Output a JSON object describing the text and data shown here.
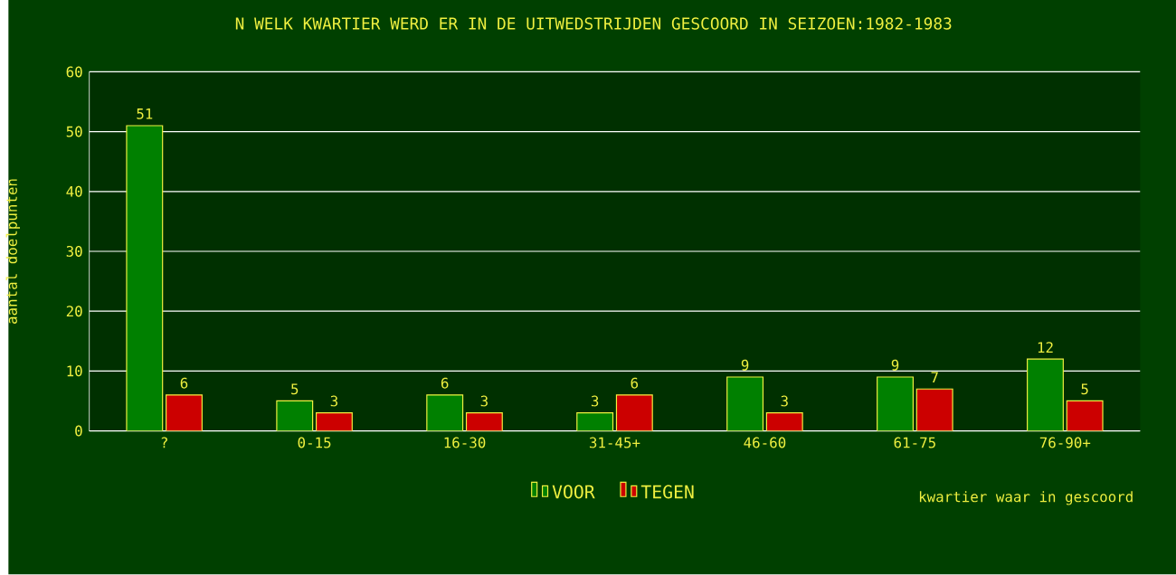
{
  "chart_data": {
    "type": "bar",
    "title": "N WELK KWARTIER WERD ER IN DE UITWEDSTRIJDEN GESCOORD IN SEIZOEN:1982-1983",
    "xlabel": "kwartier waar in gescoord",
    "ylabel": "aantal doelpunten",
    "categories": [
      "?",
      "0-15",
      "16-30",
      "31-45+",
      "46-60",
      "61-75",
      "76-90+"
    ],
    "series": [
      {
        "name": "VOOR",
        "color": "#008000",
        "values": [
          51,
          5,
          6,
          3,
          9,
          9,
          12
        ]
      },
      {
        "name": "TEGEN",
        "color": "#cc0000",
        "values": [
          6,
          3,
          3,
          6,
          3,
          7,
          5
        ]
      }
    ],
    "ylim": [
      0,
      60
    ],
    "yticks": [
      0,
      10,
      20,
      30,
      40,
      50,
      60
    ],
    "grid": "y",
    "legend": "bottom",
    "data_labels": true
  }
}
